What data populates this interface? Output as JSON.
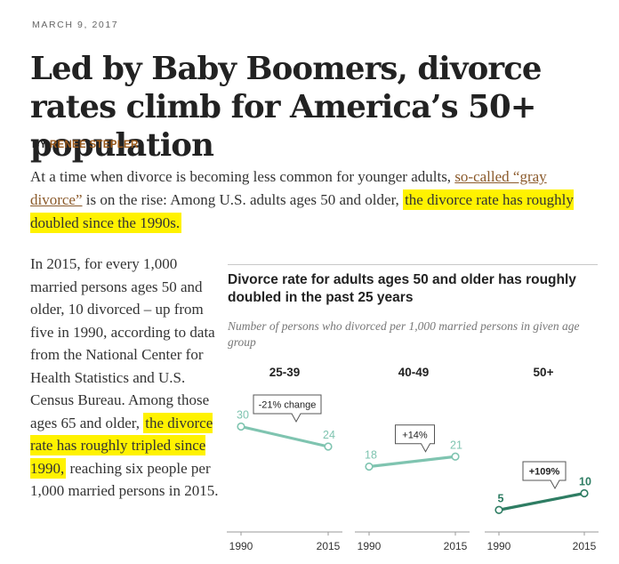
{
  "article": {
    "date": "MARCH 9, 2017",
    "headline": "Led by Baby Boomers, divorce rates climb for America’s 50+ population",
    "byline_prefix": "BY ",
    "author": "RENEE STEPLER",
    "lede": {
      "part1": "At a time when divorce is becoming less common for younger adults, ",
      "link": "so-called “gray divorce”",
      "part2": " is on the rise: Among U.S. adults ages 50 and older, ",
      "highlight": "the divorce rate has roughly doubled since the 1990s."
    },
    "paragraph2": {
      "part1": "In 2015, for every 1,000 married persons ages 50 and older, 10 divorced – up from five in 1990, according to data from the National Center for Health Statistics and U.S. Census Bureau. Among those ages 65 and older, ",
      "highlight": "the divorce rate has roughly tripled since 1990,",
      "part2": " reaching six people per 1,000 married persons in 2015."
    }
  },
  "colors": {
    "highlight": "#fff200",
    "link": "#8b5a2b",
    "author": "#9a5a1c",
    "line_light": "#7fc4b0",
    "line_dark": "#2e7d63"
  },
  "chart_data": {
    "type": "line",
    "title": "Divorce rate for adults ages 50 and older has roughly doubled in the past 25 years",
    "subtitle": "Number of persons who divorced per 1,000 married persons in given age group",
    "categories": [
      "1990",
      "2015"
    ],
    "ylim": [
      0,
      32
    ],
    "series": [
      {
        "name": "25-39",
        "values": [
          30,
          24
        ],
        "change": "-21% change"
      },
      {
        "name": "40-49",
        "values": [
          18,
          21
        ],
        "change": "+14%"
      },
      {
        "name": "50+",
        "values": [
          5,
          10
        ],
        "change": "+109%"
      }
    ]
  }
}
